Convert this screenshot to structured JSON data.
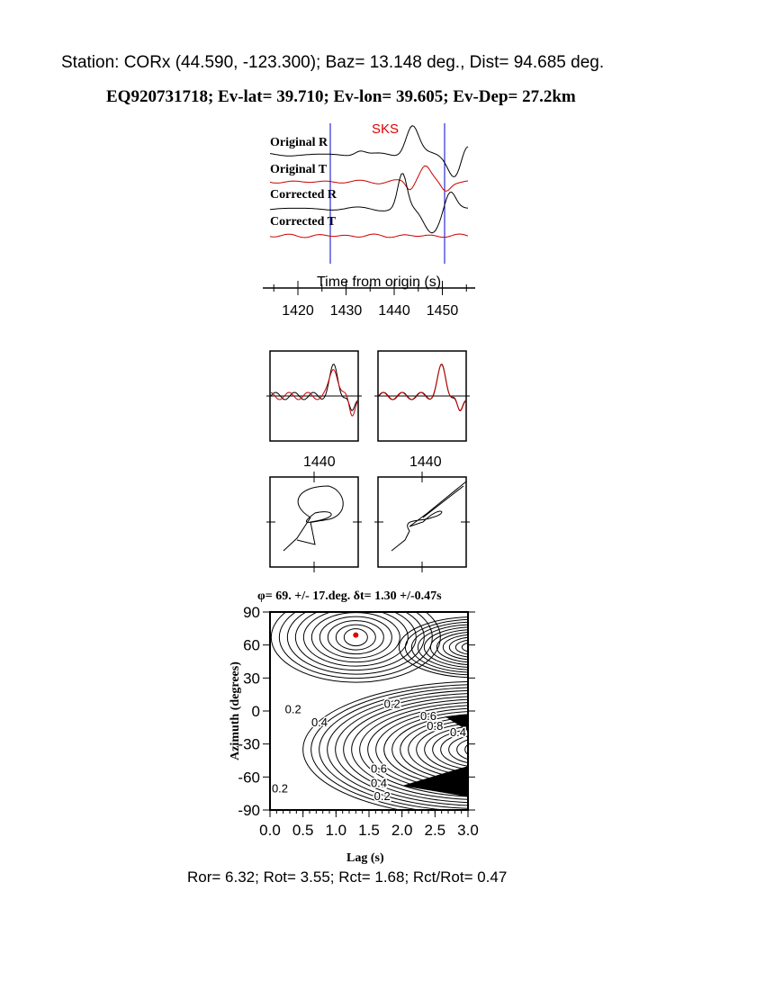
{
  "header": {
    "station_line": "Station: CORx (44.590, -123.300); Baz=   13.148 deg., Dist=   94.685 deg.",
    "event_line": "EQ920731718; Ev-lat=  39.710; Ev-lon=  39.605; Ev-Dep= 27.2km"
  },
  "chart_data": [
    {
      "type": "line",
      "title": "",
      "phase_label": "SKS",
      "series": [
        {
          "name": "Original R",
          "color": "#000000"
        },
        {
          "name": "Original T",
          "color": "#cc0000"
        },
        {
          "name": "Corrected R",
          "color": "#000000"
        },
        {
          "name": "Corrected T",
          "color": "#cc0000"
        }
      ],
      "window_markers": [
        1427,
        1451
      ],
      "marker_color": "#0000cc",
      "xlabel": "Time from origin (s)",
      "xticks": [
        "1420",
        "1430",
        "1440",
        "1450"
      ],
      "xlim": [
        1413,
        1457
      ]
    },
    {
      "type": "line",
      "panels": [
        "fast/slow original",
        "fast/slow corrected"
      ],
      "xticks": [
        "1440",
        "1440"
      ]
    },
    {
      "type": "line",
      "panels": [
        "particle motion original",
        "particle motion corrected"
      ]
    },
    {
      "type": "heatmap",
      "subtype": "contour",
      "title": "φ= 69. +/- 17.deg. δt= 1.30 +/-0.47s",
      "xlabel": "Lag (s)",
      "ylabel": "Azimuth (degrees)",
      "xlim": [
        0.0,
        3.0
      ],
      "ylim": [
        -90,
        90
      ],
      "xticks": [
        "0.0",
        "0.5",
        "1.0",
        "1.5",
        "2.0",
        "2.5",
        "3.0"
      ],
      "yticks": [
        "90",
        "60",
        "30",
        "0",
        "-30",
        "-60",
        "-90"
      ],
      "best_fit": {
        "lag": 1.3,
        "azimuth": 69,
        "color": "#dd0000"
      },
      "contour_labels": [
        "0.2",
        "0.2",
        "0.4",
        "0.6",
        "0.8",
        "0.4",
        "0.6",
        "0.4",
        "0.2",
        "0.2"
      ]
    }
  ],
  "footer": {
    "ratios": "Ror= 6.32; Rot= 3.55; Rct= 1.68; Rct/Rot= 0.47"
  }
}
